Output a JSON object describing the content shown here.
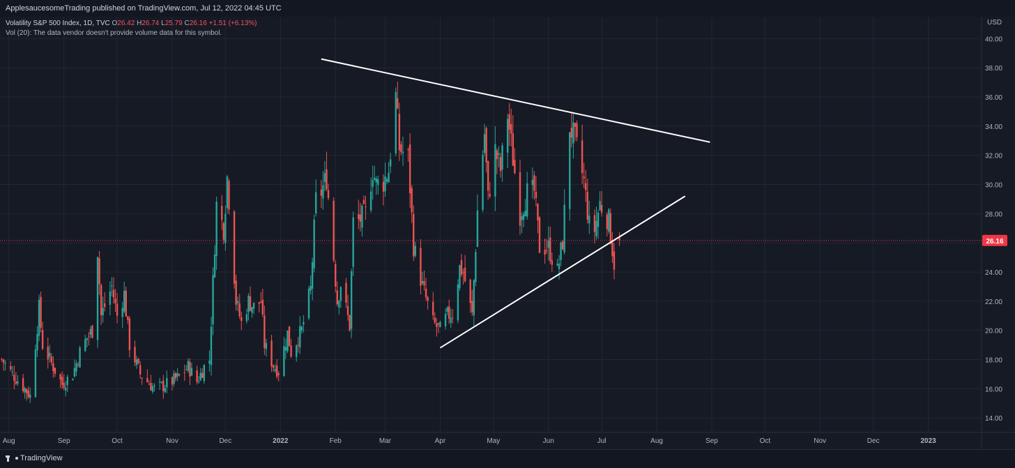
{
  "header": {
    "published_text": "ApplesaucesomeTrading published on TradingView.com, Jul 12, 2022 04:45 UTC"
  },
  "legend": {
    "symbol": "Volatility S&P 500 Index, 1D, TVC",
    "o_label": "O",
    "o_value": "26.42",
    "h_label": "H",
    "h_value": "26.74",
    "l_label": "L",
    "l_value": "25.79",
    "c_label": "C",
    "c_value": "26.16",
    "change": "+1.51 (+6.13%)",
    "volume_line": "Vol (20): The data vendor doesn't provide volume data for this symbol."
  },
  "price_axis": {
    "currency": "USD",
    "ticks": [
      "40.00",
      "38.00",
      "36.00",
      "34.00",
      "32.00",
      "30.00",
      "28.00",
      "26.00",
      "24.00",
      "22.00",
      "20.00",
      "18.00",
      "16.00",
      "14.00"
    ],
    "current_price_label": "26.16"
  },
  "time_axis": {
    "labels": [
      "Aug",
      "Sep",
      "Oct",
      "Nov",
      "Dec",
      "2022",
      "Feb",
      "Mar",
      "Apr",
      "May",
      "Jun",
      "Jul",
      "Aug",
      "Sep",
      "Oct",
      "Nov",
      "Dec",
      "2023"
    ]
  },
  "footer": {
    "brand": "TradingView"
  },
  "colors": {
    "background": "#161a25",
    "up": "#26a69a",
    "down": "#ef5350",
    "trendline": "#ffffff",
    "price_line": "#f23645",
    "grid": "#232733",
    "axis_text": "#b2b5be"
  },
  "chart_data": {
    "type": "candlestick",
    "title": "Volatility S&P 500 Index, 1D, TVC",
    "ylabel": "USD",
    "ylim": [
      13.0,
      41.5
    ],
    "xlim": [
      "2021-07-27",
      "2023-01-31"
    ],
    "last_close": 26.16,
    "grid": true,
    "price_path": [
      [
        "2021-07-28",
        18.0
      ],
      [
        "2021-08-03",
        17.0
      ],
      [
        "2021-08-10",
        16.0
      ],
      [
        "2021-08-13",
        15.5
      ],
      [
        "2021-08-18",
        21.5
      ],
      [
        "2021-08-20",
        19.0
      ],
      [
        "2021-08-26",
        17.5
      ],
      [
        "2021-08-31",
        16.3
      ],
      [
        "2021-09-06",
        17.0
      ],
      [
        "2021-09-10",
        18.5
      ],
      [
        "2021-09-14",
        19.5
      ],
      [
        "2021-09-17",
        20.0
      ],
      [
        "2021-09-20",
        25.5
      ],
      [
        "2021-09-22",
        21.0
      ],
      [
        "2021-09-28",
        23.0
      ],
      [
        "2021-10-01",
        21.0
      ],
      [
        "2021-10-05",
        22.5
      ],
      [
        "2021-10-08",
        19.0
      ],
      [
        "2021-10-14",
        17.0
      ],
      [
        "2021-10-18",
        16.5
      ],
      [
        "2021-10-22",
        16.0
      ],
      [
        "2021-10-27",
        16.2
      ],
      [
        "2021-11-01",
        16.5
      ],
      [
        "2021-11-05",
        16.8
      ],
      [
        "2021-11-10",
        17.5
      ],
      [
        "2021-11-15",
        16.5
      ],
      [
        "2021-11-19",
        17.5
      ],
      [
        "2021-11-22",
        18.0
      ],
      [
        "2021-11-26",
        28.6
      ],
      [
        "2021-11-30",
        27.0
      ],
      [
        "2021-12-02",
        30.5
      ],
      [
        "2021-12-03",
        29.0
      ],
      [
        "2021-12-07",
        22.0
      ],
      [
        "2021-12-10",
        20.5
      ],
      [
        "2021-12-14",
        22.0
      ],
      [
        "2021-12-17",
        21.6
      ],
      [
        "2021-12-21",
        22.0
      ],
      [
        "2021-12-23",
        19.0
      ],
      [
        "2021-12-28",
        17.6
      ],
      [
        "2021-12-31",
        17.2
      ],
      [
        "2022-01-05",
        19.8
      ],
      [
        "2022-01-07",
        18.5
      ],
      [
        "2022-01-13",
        20.0
      ],
      [
        "2022-01-18",
        22.8
      ],
      [
        "2022-01-21",
        28.9
      ],
      [
        "2022-01-24",
        29.5
      ],
      [
        "2022-01-27",
        30.5
      ],
      [
        "2022-01-31",
        25.0
      ],
      [
        "2022-02-02",
        22.0
      ],
      [
        "2022-02-04",
        23.2
      ],
      [
        "2022-02-09",
        20.3
      ],
      [
        "2022-02-11",
        27.4
      ],
      [
        "2022-02-14",
        27.5
      ],
      [
        "2022-02-18",
        28.0
      ],
      [
        "2022-02-22",
        31.0
      ],
      [
        "2022-02-24",
        30.0
      ],
      [
        "2022-02-28",
        30.2
      ],
      [
        "2022-03-03",
        31.0
      ],
      [
        "2022-03-07",
        36.0
      ],
      [
        "2022-03-09",
        32.5
      ],
      [
        "2022-03-14",
        31.8
      ],
      [
        "2022-03-17",
        25.8
      ],
      [
        "2022-03-22",
        23.0
      ],
      [
        "2022-03-28",
        20.5
      ],
      [
        "2022-04-01",
        20.0
      ],
      [
        "2022-04-05",
        21.0
      ],
      [
        "2022-04-08",
        21.2
      ],
      [
        "2022-04-12",
        24.3
      ],
      [
        "2022-04-14",
        24.0
      ],
      [
        "2022-04-19",
        21.0
      ],
      [
        "2022-04-22",
        28.2
      ],
      [
        "2022-04-26",
        33.5
      ],
      [
        "2022-04-28",
        29.0
      ],
      [
        "2022-05-02",
        32.3
      ],
      [
        "2022-05-05",
        31.0
      ],
      [
        "2022-05-09",
        34.8
      ],
      [
        "2022-05-12",
        31.8
      ],
      [
        "2022-05-16",
        28.0
      ],
      [
        "2022-05-20",
        29.4
      ],
      [
        "2022-05-24",
        29.5
      ],
      [
        "2022-05-27",
        25.7
      ],
      [
        "2022-06-01",
        25.7
      ],
      [
        "2022-06-06",
        24.0
      ],
      [
        "2022-06-09",
        26.1
      ],
      [
        "2022-06-13",
        34.0
      ],
      [
        "2022-06-16",
        33.0
      ],
      [
        "2022-06-21",
        30.2
      ],
      [
        "2022-06-24",
        27.2
      ],
      [
        "2022-06-27",
        26.9
      ],
      [
        "2022-06-30",
        28.7
      ],
      [
        "2022-07-05",
        27.5
      ],
      [
        "2022-07-08",
        24.6
      ],
      [
        "2022-07-11",
        26.16
      ]
    ],
    "trendlines": [
      {
        "name": "upper",
        "start": [
          "2022-01-24",
          38.6
        ],
        "end": [
          "2022-08-31",
          32.9
        ]
      },
      {
        "name": "lower",
        "start": [
          "2022-04-01",
          18.8
        ],
        "end": [
          "2022-08-17",
          29.2
        ]
      }
    ]
  }
}
